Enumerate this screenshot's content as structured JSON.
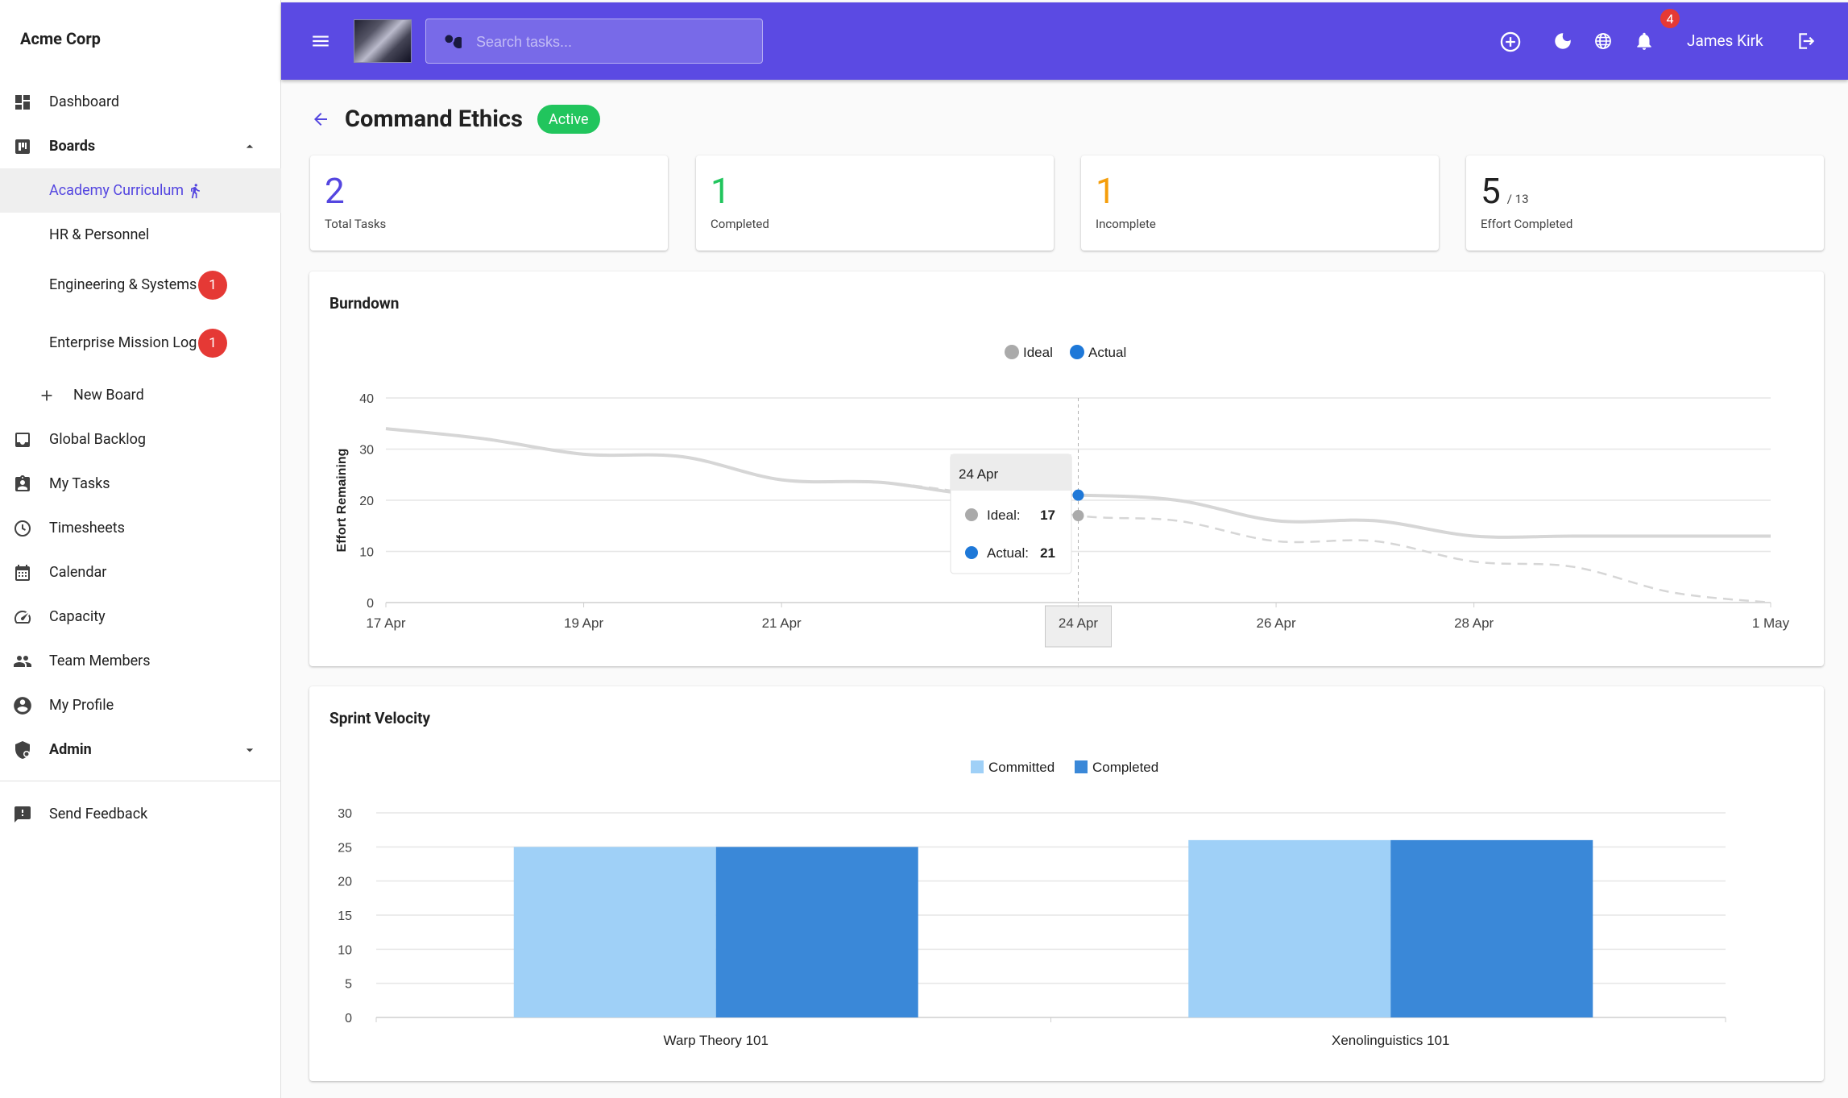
{
  "sidebar": {
    "brand": "Acme Corp",
    "items": [
      {
        "label": "Dashboard"
      },
      {
        "label": "Boards"
      },
      {
        "label": "Academy Curriculum"
      },
      {
        "label": "HR & Personnel"
      },
      {
        "label": "Engineering & Systems",
        "badge": "1"
      },
      {
        "label": "Enterprise Mission Log",
        "badge": "1"
      },
      {
        "label": "New Board"
      },
      {
        "label": "Global Backlog"
      },
      {
        "label": "My Tasks"
      },
      {
        "label": "Timesheets"
      },
      {
        "label": "Calendar"
      },
      {
        "label": "Capacity"
      },
      {
        "label": "Team Members"
      },
      {
        "label": "My Profile"
      },
      {
        "label": "Admin"
      },
      {
        "label": "Send Feedback"
      }
    ]
  },
  "topbar": {
    "search_placeholder": "Search tasks...",
    "notifications_count": "4",
    "user_name": "James Kirk"
  },
  "page": {
    "title": "Command Ethics",
    "status": "Active"
  },
  "stats": [
    {
      "value": "2",
      "label": "Total Tasks",
      "color": "#5446e0"
    },
    {
      "value": "1",
      "label": "Completed",
      "color": "#21c55d"
    },
    {
      "value": "1",
      "label": "Incomplete",
      "color": "#f59e0b"
    },
    {
      "value": "5",
      "of": "/ 13",
      "label": "Effort Completed",
      "color": "#212121"
    }
  ],
  "colors": {
    "accent": "#5b4ae3",
    "ideal": "#aaaaaa",
    "actual": "#1e78d8",
    "committed": "#9fd0f7",
    "completed": "#3a88d8"
  },
  "chart_data": [
    {
      "type": "line",
      "title": "Burndown",
      "ylabel": "Effort Remaining",
      "xlabel": "",
      "ylim": [
        0,
        40
      ],
      "yticks": [
        0,
        10,
        20,
        30,
        40
      ],
      "x": [
        "17 Apr",
        "18 Apr",
        "19 Apr",
        "20 Apr",
        "21 Apr",
        "22 Apr",
        "23 Apr",
        "24 Apr",
        "25 Apr",
        "26 Apr",
        "27 Apr",
        "28 Apr",
        "29 Apr",
        "30 Apr",
        "1 May"
      ],
      "xtick_labels": [
        "17 Apr",
        "19 Apr",
        "21 Apr",
        "24 Apr",
        "26 Apr",
        "28 Apr",
        "1 May"
      ],
      "series": [
        {
          "name": "Ideal",
          "values": [
            34,
            32,
            29,
            28.5,
            24,
            23.5,
            21,
            17,
            16,
            12,
            12,
            8,
            7,
            2,
            0
          ]
        },
        {
          "name": "Actual",
          "values": [
            34,
            32,
            29,
            28.5,
            24,
            23.5,
            21,
            21,
            20,
            16,
            16,
            13,
            13,
            13,
            13
          ]
        }
      ],
      "legend": "top-center",
      "tooltip": {
        "title": "24 Apr",
        "rows": [
          {
            "name": "Ideal:",
            "value": "17"
          },
          {
            "name": "Actual:",
            "value": "21"
          }
        ]
      }
    },
    {
      "type": "bar",
      "title": "Sprint Velocity",
      "ylim": [
        0,
        30
      ],
      "yticks": [
        0,
        5,
        10,
        15,
        20,
        25,
        30
      ],
      "categories": [
        "Warp Theory 101",
        "Xenolinguistics 101"
      ],
      "series": [
        {
          "name": "Committed",
          "values": [
            25,
            26
          ]
        },
        {
          "name": "Completed",
          "values": [
            25,
            26
          ]
        }
      ],
      "legend": "top-center"
    }
  ]
}
